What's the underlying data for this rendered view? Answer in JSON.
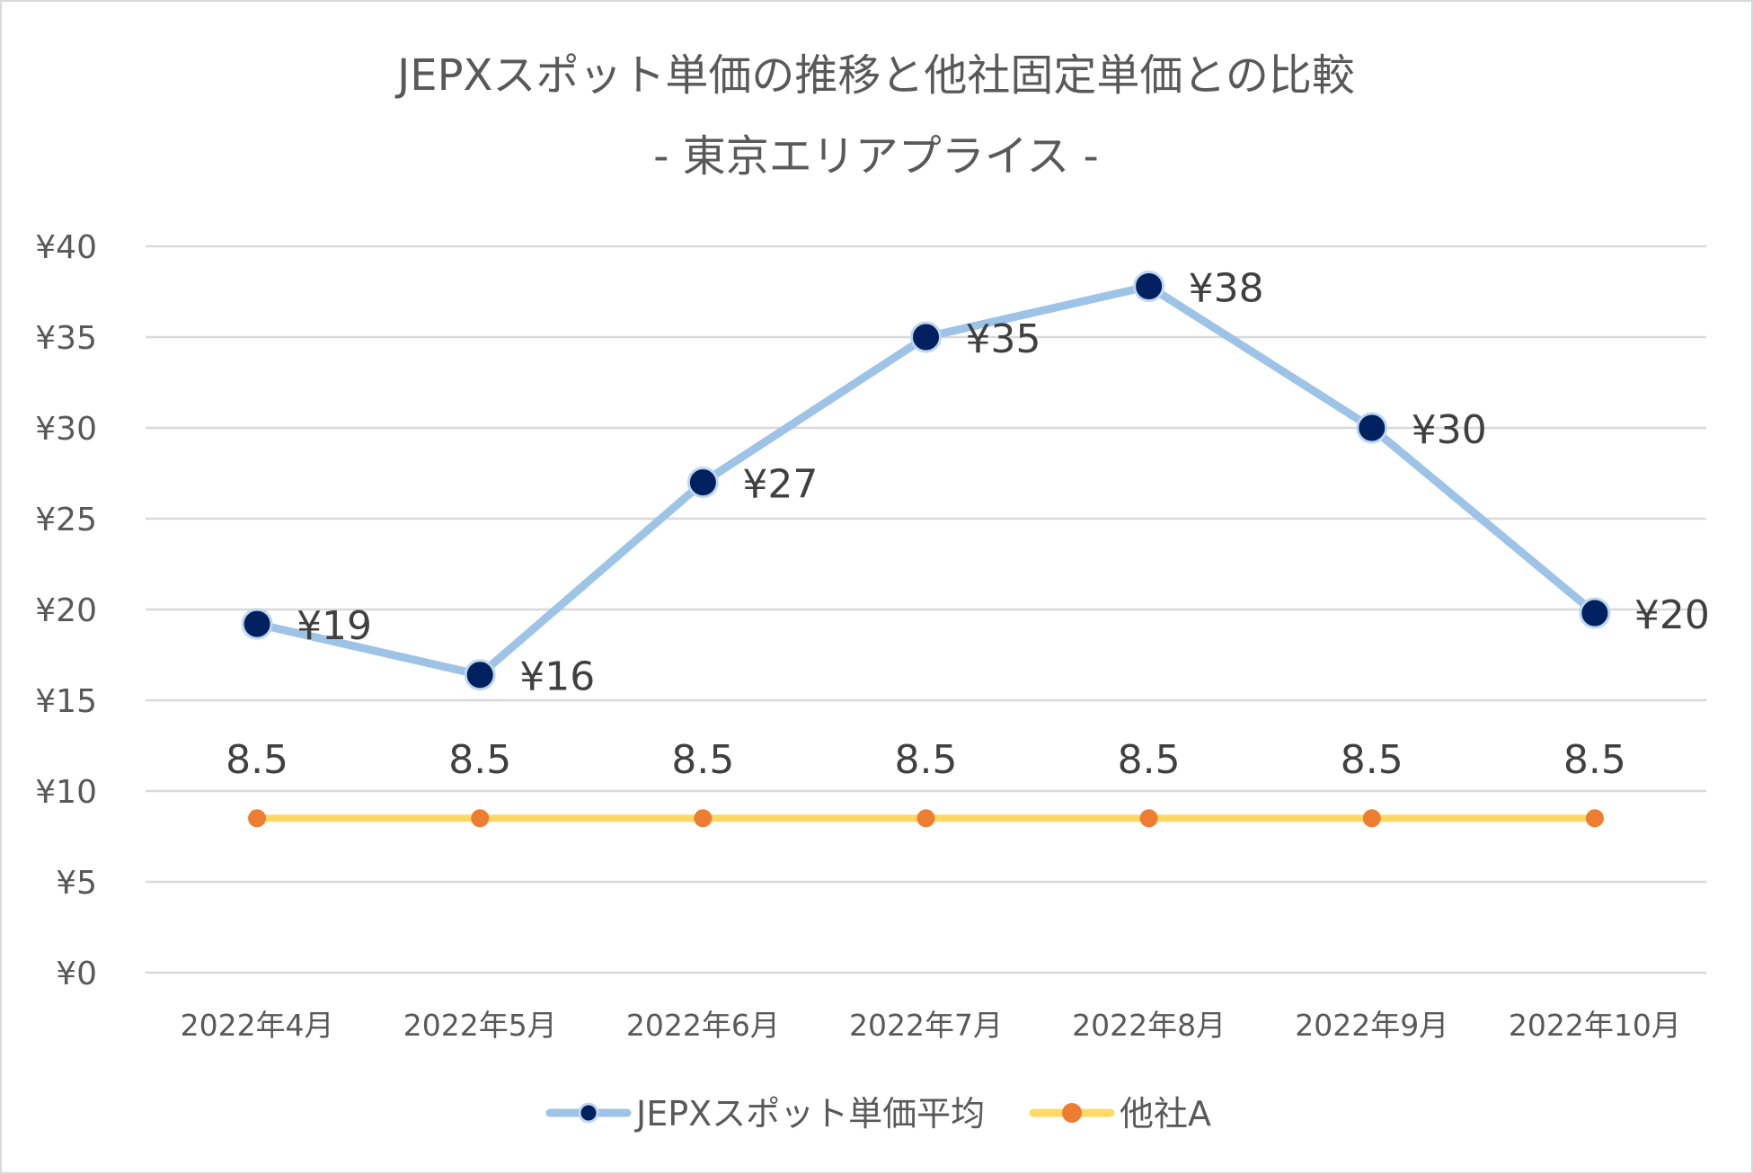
{
  "chart_data": {
    "type": "line",
    "title": "JEPXスポット単価の推移と他社固定単価との比較",
    "subtitle": "- 東京エリアプライス -",
    "xlabel": "",
    "ylabel": "",
    "categories": [
      "2022年4月",
      "2022年5月",
      "2022年6月",
      "2022年7月",
      "2022年8月",
      "2022年9月",
      "2022年10月"
    ],
    "ylim": [
      0,
      40
    ],
    "yticks": [
      0,
      5,
      10,
      15,
      20,
      25,
      30,
      35,
      40
    ],
    "ytick_labels": [
      "¥0",
      "¥5",
      "¥10",
      "¥15",
      "¥20",
      "¥25",
      "¥30",
      "¥35",
      "¥40"
    ],
    "grid": true,
    "legend_position": "bottom",
    "series": [
      {
        "name": "JEPXスポット単価平均",
        "values": [
          19.2,
          16.4,
          27.0,
          35.0,
          37.8,
          30.0,
          19.8
        ],
        "data_labels": [
          "¥19",
          "¥16",
          "¥27",
          "¥35",
          "¥38",
          "¥30",
          "¥20"
        ],
        "line_color": "#9dc3e6",
        "marker_color": "#002060"
      },
      {
        "name": "他社A",
        "values": [
          8.5,
          8.5,
          8.5,
          8.5,
          8.5,
          8.5,
          8.5
        ],
        "data_labels": [
          "8.5",
          "8.5",
          "8.5",
          "8.5",
          "8.5",
          "8.5",
          "8.5"
        ],
        "line_color": "#ffd966",
        "marker_color": "#ed7d31"
      }
    ]
  }
}
